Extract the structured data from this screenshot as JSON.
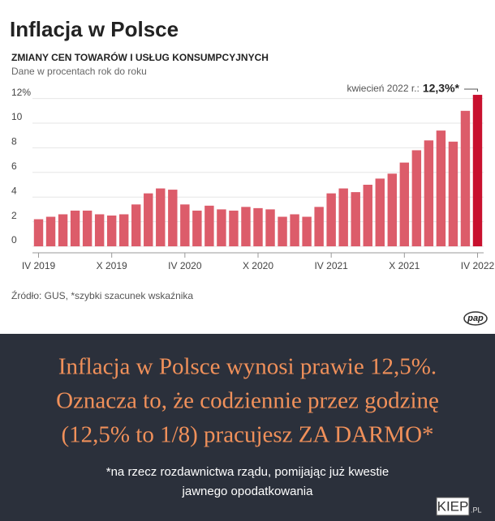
{
  "chart_data": {
    "type": "bar",
    "title": "Inflacja w Polsce",
    "subtitle": "ZMIANY CEN TOWARÓW I USŁUG KONSUMPCYJNYCH",
    "y_label": "Dane w procentach rok do roku",
    "categories": [
      "IV 2019",
      null,
      null,
      null,
      null,
      null,
      "X 2019",
      null,
      null,
      null,
      null,
      null,
      "IV 2020",
      null,
      null,
      null,
      null,
      null,
      "X 2020",
      null,
      null,
      null,
      null,
      null,
      "IV 2021",
      null,
      null,
      null,
      null,
      null,
      "X 2021",
      null,
      null,
      null,
      null,
      null,
      "IV 2022"
    ],
    "values": [
      2.2,
      2.4,
      2.6,
      2.9,
      2.9,
      2.6,
      2.5,
      2.6,
      3.4,
      4.3,
      4.7,
      4.6,
      3.4,
      2.9,
      3.3,
      3.0,
      2.9,
      3.2,
      3.1,
      3.0,
      2.4,
      2.6,
      2.4,
      3.2,
      4.3,
      4.7,
      4.4,
      5.0,
      5.5,
      5.9,
      6.8,
      7.8,
      8.6,
      9.4,
      8.5,
      11.0,
      12.3
    ],
    "color": "#dc5c6a",
    "highlight_color": "#c8102e",
    "ylim": [
      0,
      12.5
    ],
    "yticks": [
      0,
      2,
      4,
      6,
      8,
      10,
      {
        "value": 12,
        "label": "12%"
      }
    ],
    "grid": true,
    "annotation": {
      "text": "kwiecień 2022 r.:",
      "label": "12,3%*"
    },
    "source": "Źródło: GUS, *szybki szacunek wskaźnika",
    "logo": "pap"
  },
  "caption": {
    "lines": [
      "Inflacja w Polsce wynosi prawie 12,5%.",
      "Oznacza to, że codziennie przez godzinę",
      "(12,5% to 1/8) pracujesz ZA DARMO*"
    ],
    "note": [
      "*na rzecz rozdawnictwa rządu, pomijając już kwestie",
      "jawnego opodatkowania"
    ]
  },
  "watermark": {
    "main": "KIEP",
    "suffix": ".PL"
  }
}
